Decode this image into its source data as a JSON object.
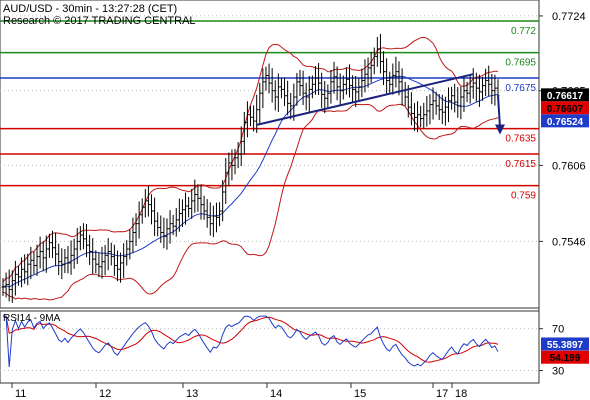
{
  "header": {
    "title": "AUD/USD - 30min - 13:27:28 (CET)",
    "research": "Research © 2017 TRADING CENTRAL"
  },
  "chart_data": {
    "type": "candlestick",
    "price_axis": {
      "ylim": [
        0.7495,
        0.7735
      ],
      "ticks": [
        "0.7724",
        "0.7665",
        "0.7606",
        "0.7546"
      ]
    },
    "levels": [
      {
        "label": "0.772",
        "value": 0.772,
        "color": "#1a8a1a"
      },
      {
        "label": "0.7695",
        "value": 0.7695,
        "color": "#1a8a1a"
      },
      {
        "label": "0.7675",
        "value": 0.7675,
        "color": "#1e3cc8"
      },
      {
        "label": "0.7635",
        "value": 0.7635,
        "color": "#d40000"
      },
      {
        "label": "0.7615",
        "value": 0.7615,
        "color": "#d40000"
      },
      {
        "label": "0.759",
        "value": 0.759,
        "color": "#d40000"
      }
    ],
    "price_tags": [
      {
        "label": "0.76617",
        "value": 0.76617,
        "bg": "#000000",
        "fg": "#ffffff"
      },
      {
        "label": "0.76607",
        "value": 0.7656,
        "bg": "#e00000",
        "fg": "#000000"
      },
      {
        "label": "0.76524",
        "value": 0.76524,
        "bg": "#1e3cc8",
        "fg": "#ffffff"
      }
    ],
    "close_series": [
      0.751,
      0.7512,
      0.7508,
      0.7515,
      0.752,
      0.7518,
      0.7524,
      0.7522,
      0.7528,
      0.7531,
      0.7527,
      0.7534,
      0.7538,
      0.7533,
      0.754,
      0.7545,
      0.7541,
      0.7536,
      0.753,
      0.7528,
      0.7533,
      0.7529,
      0.7535,
      0.754,
      0.7546,
      0.7551,
      0.7548,
      0.7543,
      0.7538,
      0.7532,
      0.7528,
      0.7526,
      0.753,
      0.7535,
      0.7538,
      0.7534,
      0.7527,
      0.7524,
      0.7529,
      0.7534,
      0.754,
      0.7546,
      0.7553,
      0.756,
      0.7567,
      0.7573,
      0.7578,
      0.7575,
      0.757,
      0.7562,
      0.7557,
      0.7553,
      0.755,
      0.7556,
      0.756,
      0.7558,
      0.7563,
      0.7568,
      0.7571,
      0.7574,
      0.7572,
      0.7578,
      0.7583,
      0.758,
      0.7575,
      0.757,
      0.7565,
      0.756,
      0.7566,
      0.7565,
      0.757,
      0.7585,
      0.76,
      0.7608,
      0.7606,
      0.7612,
      0.7615,
      0.7625,
      0.764,
      0.7646,
      0.7644,
      0.7641,
      0.765,
      0.7663,
      0.7672,
      0.7677,
      0.7671,
      0.7665,
      0.766,
      0.7668,
      0.7666,
      0.7661,
      0.7655,
      0.7653,
      0.766,
      0.7672,
      0.7669,
      0.7663,
      0.766,
      0.7666,
      0.767,
      0.7675,
      0.7671,
      0.7662,
      0.7659,
      0.7663,
      0.7672,
      0.7676,
      0.7668,
      0.7665,
      0.767,
      0.7674,
      0.7669,
      0.7666,
      0.7664,
      0.7668,
      0.7673,
      0.7678,
      0.7683,
      0.7685,
      0.7692,
      0.7698,
      0.7688,
      0.768,
      0.7673,
      0.767,
      0.7677,
      0.768,
      0.7672,
      0.7665,
      0.766,
      0.7652,
      0.7647,
      0.7644,
      0.7646,
      0.7643,
      0.7646,
      0.7649,
      0.7654,
      0.7657,
      0.7653,
      0.765,
      0.7648,
      0.7652,
      0.7657,
      0.7661,
      0.7656,
      0.7653,
      0.766,
      0.7665,
      0.7663,
      0.7668,
      0.7671,
      0.7667,
      0.7664,
      0.7669,
      0.7673,
      0.767,
      0.7665,
      0.7667,
      0.7661
    ],
    "forecast_arrow": {
      "from": 0.7661,
      "to": 0.7632
    },
    "trendline": {
      "from": 0.7638,
      "to": 0.7678
    },
    "x_labels": [
      "11",
      "12",
      "13",
      "14",
      "15",
      "17",
      "18"
    ],
    "rsi": {
      "title": "RSI14 - 9MA",
      "ylim": [
        20,
        85
      ],
      "ticks": [
        "70",
        "30"
      ],
      "rsi_tag": {
        "label": "55.3897",
        "value": 55.39,
        "bg": "#1e3cc8",
        "fg": "#ffffff"
      },
      "ma_tag": {
        "label": "54.199",
        "value": 54.2,
        "bg": "#e00000",
        "fg": "#000000"
      }
    }
  }
}
